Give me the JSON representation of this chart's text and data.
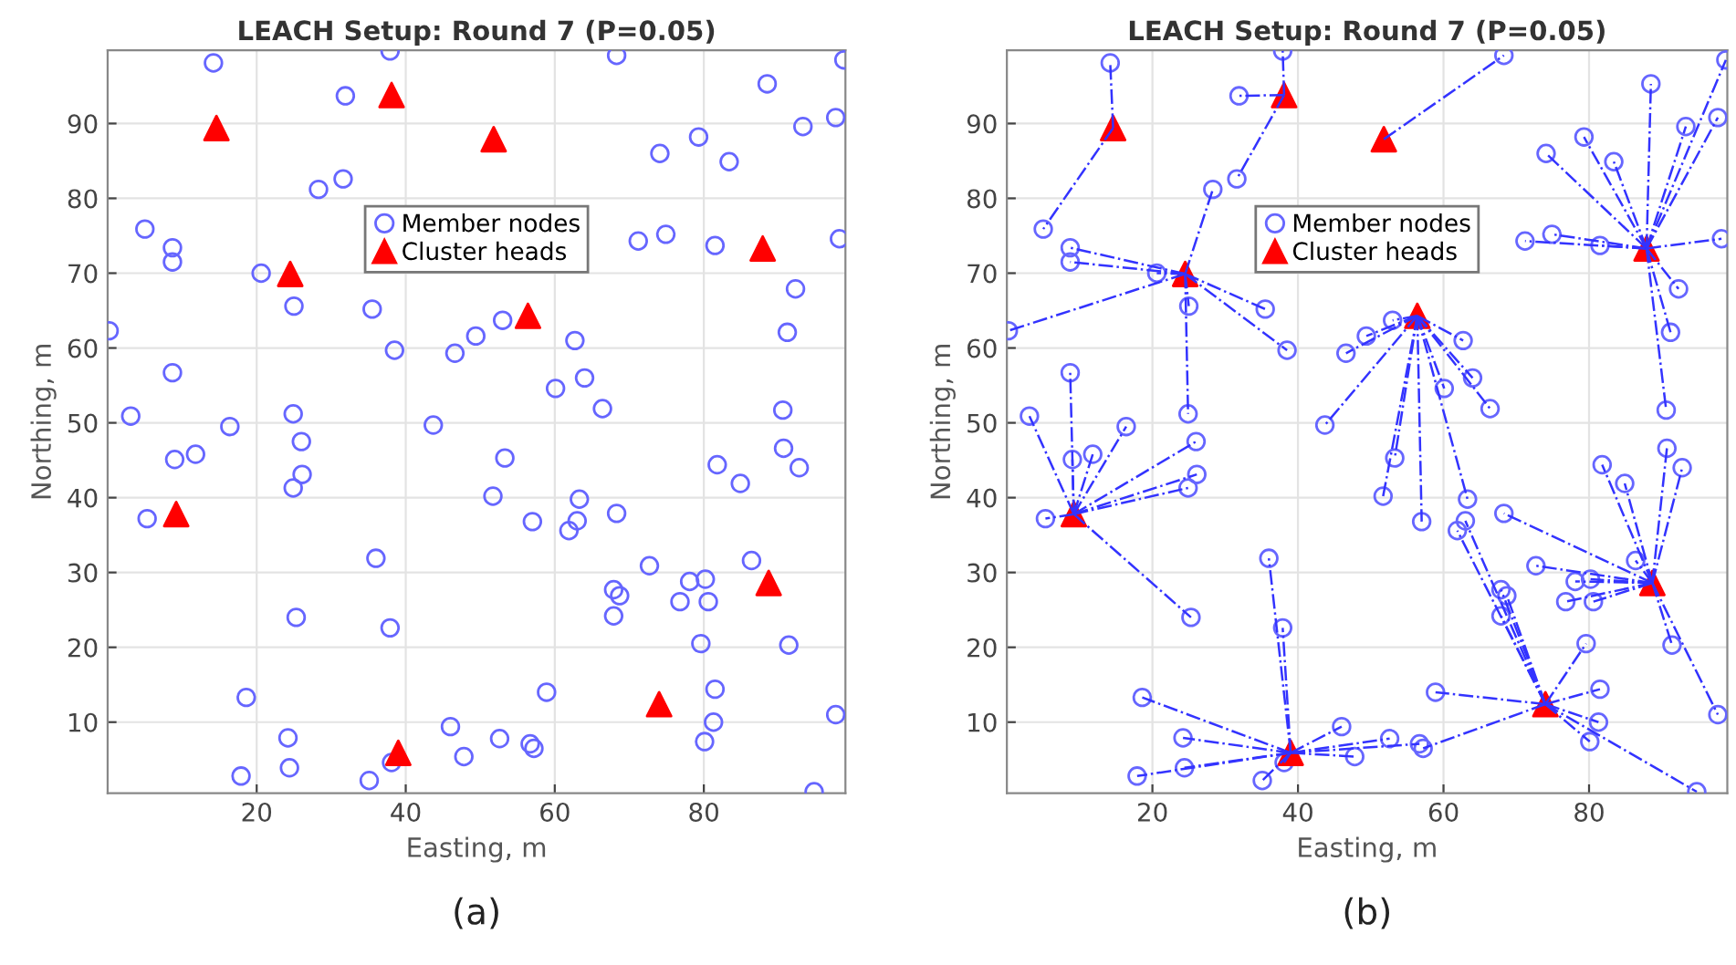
{
  "chart_data": [
    {
      "type": "scatter",
      "title": "LEACH Setup: Round 7 (P=0.05)",
      "xlabel": "Easting, m",
      "ylabel": "Northing, m",
      "xlim": [
        0,
        99
      ],
      "ylim": [
        0.5,
        99.8
      ],
      "xticks": [
        20,
        40,
        60,
        80
      ],
      "yticks": [
        10,
        20,
        30,
        40,
        50,
        60,
        70,
        80,
        90
      ],
      "grid": true,
      "legend": "top",
      "annotations": [
        "(a)"
      ],
      "series": [
        {
          "name": "Member nodes",
          "type": "scatter",
          "marker": "circle",
          "color": "#6666ff",
          "x": [
            0.2,
            14.2,
            5.0,
            8.7,
            8.7,
            8.7,
            3.1,
            16.4,
            9.0,
            11.8,
            20.6,
            25.0,
            31.9,
            31.6,
            28.3,
            37.9,
            35.5,
            38.5,
            24.9,
            26.0,
            26.1,
            24.9,
            5.3,
            46.6,
            49.4,
            53.0,
            43.7,
            60.1,
            62.7,
            64.0,
            66.4,
            68.3,
            74.1,
            71.2,
            74.9,
            79.3,
            83.4,
            81.5,
            88.5,
            93.3,
            97.7,
            98.8,
            98.2,
            92.3,
            91.2,
            90.6,
            90.7,
            92.8,
            81.8,
            84.9,
            86.4,
            91.4,
            97.7,
            94.8,
            53.3,
            51.7,
            57.0,
            63.3,
            63.0,
            61.9,
            68.3,
            72.7,
            67.9,
            68.7,
            67.9,
            76.8,
            78.1,
            80.2,
            80.6,
            79.6,
            81.5,
            81.3,
            80.1,
            58.9,
            46.0,
            47.8,
            52.6,
            56.7,
            57.2,
            38.1,
            35.1,
            36.0,
            37.9,
            25.3,
            18.6,
            24.2,
            24.4,
            17.9
          ],
          "values": [
            62.3,
            98.1,
            75.9,
            73.4,
            71.5,
            56.7,
            50.9,
            49.5,
            45.1,
            45.8,
            70.0,
            65.6,
            93.7,
            82.6,
            81.2,
            99.7,
            65.2,
            59.7,
            51.2,
            47.5,
            43.1,
            41.3,
            37.2,
            59.3,
            61.6,
            63.7,
            49.7,
            54.6,
            61.0,
            56.0,
            51.9,
            99.1,
            86.0,
            74.3,
            75.2,
            88.2,
            84.9,
            73.7,
            95.3,
            89.6,
            90.8,
            98.5,
            74.6,
            67.9,
            62.1,
            51.7,
            46.6,
            44.0,
            44.4,
            41.9,
            31.6,
            20.3,
            11.0,
            0.7,
            45.3,
            40.2,
            36.8,
            39.8,
            36.9,
            35.6,
            37.9,
            30.9,
            27.7,
            26.9,
            24.2,
            26.1,
            28.8,
            29.1,
            26.1,
            20.5,
            14.4,
            10.0,
            7.4,
            14.0,
            9.4,
            5.4,
            7.8,
            7.1,
            6.5,
            4.6,
            2.2,
            31.9,
            22.6,
            24.0,
            13.3,
            7.9,
            3.9,
            2.8
          ]
        },
        {
          "name": "Cluster heads",
          "type": "scatter",
          "marker": "triangle",
          "color": "#ff0000",
          "x": [
            14.6,
            38.1,
            51.8,
            24.5,
            56.4,
            87.9,
            9.2,
            39.0,
            74.0,
            88.7
          ],
          "values": [
            89.4,
            93.8,
            87.9,
            69.9,
            64.3,
            73.3,
            37.8,
            5.9,
            12.4,
            28.6
          ]
        }
      ]
    },
    {
      "type": "scatter",
      "title": "LEACH Setup: Round 7 (P=0.05)",
      "xlabel": "Easting, m",
      "ylabel": "Northing, m",
      "xlim": [
        0,
        99
      ],
      "ylim": [
        0.5,
        99.8
      ],
      "xticks": [
        20,
        40,
        60,
        80
      ],
      "yticks": [
        10,
        20,
        30,
        40,
        50,
        60,
        70,
        80,
        90
      ],
      "grid": true,
      "legend": "top",
      "annotations": [
        "(b)"
      ],
      "series": [
        {
          "type": "line",
          "line_style": "dashdot",
          "color": "#3333ff",
          "x": [
            14.6,
            14.2
          ],
          "values": [
            89.4,
            98.1
          ]
        },
        {
          "type": "line",
          "line_style": "dashdot",
          "color": "#3333ff",
          "x": [
            14.6,
            5.0
          ],
          "values": [
            89.4,
            75.9
          ]
        },
        {
          "type": "line",
          "line_style": "dashdot",
          "color": "#3333ff",
          "x": [
            38.1,
            31.9
          ],
          "values": [
            93.8,
            93.7
          ]
        },
        {
          "type": "line",
          "line_style": "dashdot",
          "color": "#3333ff",
          "x": [
            38.1,
            31.6
          ],
          "values": [
            93.8,
            82.6
          ]
        },
        {
          "type": "line",
          "line_style": "dashdot",
          "color": "#3333ff",
          "x": [
            38.1,
            37.9
          ],
          "values": [
            93.8,
            99.7
          ]
        },
        {
          "type": "line",
          "line_style": "dashdot",
          "color": "#3333ff",
          "x": [
            51.8,
            68.3
          ],
          "values": [
            87.9,
            99.1
          ]
        },
        {
          "type": "line",
          "line_style": "dashdot",
          "color": "#3333ff",
          "x": [
            24.5,
            0.2
          ],
          "values": [
            69.9,
            62.3
          ]
        },
        {
          "type": "line",
          "line_style": "dashdot",
          "color": "#3333ff",
          "x": [
            24.5,
            8.7
          ],
          "values": [
            69.9,
            73.4
          ]
        },
        {
          "type": "line",
          "line_style": "dashdot",
          "color": "#3333ff",
          "x": [
            24.5,
            8.7
          ],
          "values": [
            69.9,
            71.5
          ]
        },
        {
          "type": "line",
          "line_style": "dashdot",
          "color": "#3333ff",
          "x": [
            24.5,
            20.6
          ],
          "values": [
            69.9,
            70.0
          ]
        },
        {
          "type": "line",
          "line_style": "dashdot",
          "color": "#3333ff",
          "x": [
            24.5,
            25.0
          ],
          "values": [
            69.9,
            65.6
          ]
        },
        {
          "type": "line",
          "line_style": "dashdot",
          "color": "#3333ff",
          "x": [
            24.5,
            28.3
          ],
          "values": [
            69.9,
            81.2
          ]
        },
        {
          "type": "line",
          "line_style": "dashdot",
          "color": "#3333ff",
          "x": [
            24.5,
            35.5
          ],
          "values": [
            69.9,
            65.2
          ]
        },
        {
          "type": "line",
          "line_style": "dashdot",
          "color": "#3333ff",
          "x": [
            24.5,
            38.5
          ],
          "values": [
            69.9,
            59.7
          ]
        },
        {
          "type": "line",
          "line_style": "dashdot",
          "color": "#3333ff",
          "x": [
            24.5,
            24.9
          ],
          "values": [
            69.9,
            51.2
          ]
        },
        {
          "type": "line",
          "line_style": "dashdot",
          "color": "#3333ff",
          "x": [
            56.4,
            46.6
          ],
          "values": [
            64.3,
            59.3
          ]
        },
        {
          "type": "line",
          "line_style": "dashdot",
          "color": "#3333ff",
          "x": [
            56.4,
            49.4
          ],
          "values": [
            64.3,
            61.6
          ]
        },
        {
          "type": "line",
          "line_style": "dashdot",
          "color": "#3333ff",
          "x": [
            56.4,
            53.0
          ],
          "values": [
            64.3,
            63.7
          ]
        },
        {
          "type": "line",
          "line_style": "dashdot",
          "color": "#3333ff",
          "x": [
            56.4,
            43.7
          ],
          "values": [
            64.3,
            49.7
          ]
        },
        {
          "type": "line",
          "line_style": "dashdot",
          "color": "#3333ff",
          "x": [
            56.4,
            60.1
          ],
          "values": [
            64.3,
            54.6
          ]
        },
        {
          "type": "line",
          "line_style": "dashdot",
          "color": "#3333ff",
          "x": [
            56.4,
            62.7
          ],
          "values": [
            64.3,
            61.0
          ]
        },
        {
          "type": "line",
          "line_style": "dashdot",
          "color": "#3333ff",
          "x": [
            56.4,
            64.0
          ],
          "values": [
            64.3,
            56.0
          ]
        },
        {
          "type": "line",
          "line_style": "dashdot",
          "color": "#3333ff",
          "x": [
            56.4,
            66.4
          ],
          "values": [
            64.3,
            51.9
          ]
        },
        {
          "type": "line",
          "line_style": "dashdot",
          "color": "#3333ff",
          "x": [
            56.4,
            53.3
          ],
          "values": [
            64.3,
            45.3
          ]
        },
        {
          "type": "line",
          "line_style": "dashdot",
          "color": "#3333ff",
          "x": [
            56.4,
            51.7
          ],
          "values": [
            64.3,
            40.2
          ]
        },
        {
          "type": "line",
          "line_style": "dashdot",
          "color": "#3333ff",
          "x": [
            56.4,
            57.0
          ],
          "values": [
            64.3,
            36.8
          ]
        },
        {
          "type": "line",
          "line_style": "dashdot",
          "color": "#3333ff",
          "x": [
            56.4,
            63.3
          ],
          "values": [
            64.3,
            39.8
          ]
        },
        {
          "type": "line",
          "line_style": "dashdot",
          "color": "#3333ff",
          "x": [
            87.9,
            74.1
          ],
          "values": [
            73.3,
            86.0
          ]
        },
        {
          "type": "line",
          "line_style": "dashdot",
          "color": "#3333ff",
          "x": [
            87.9,
            71.2
          ],
          "values": [
            73.3,
            74.3
          ]
        },
        {
          "type": "line",
          "line_style": "dashdot",
          "color": "#3333ff",
          "x": [
            87.9,
            74.9
          ],
          "values": [
            73.3,
            75.2
          ]
        },
        {
          "type": "line",
          "line_style": "dashdot",
          "color": "#3333ff",
          "x": [
            87.9,
            79.3
          ],
          "values": [
            73.3,
            88.2
          ]
        },
        {
          "type": "line",
          "line_style": "dashdot",
          "color": "#3333ff",
          "x": [
            87.9,
            83.4
          ],
          "values": [
            73.3,
            84.9
          ]
        },
        {
          "type": "line",
          "line_style": "dashdot",
          "color": "#3333ff",
          "x": [
            87.9,
            81.5
          ],
          "values": [
            73.3,
            73.7
          ]
        },
        {
          "type": "line",
          "line_style": "dashdot",
          "color": "#3333ff",
          "x": [
            87.9,
            88.5
          ],
          "values": [
            73.3,
            95.3
          ]
        },
        {
          "type": "line",
          "line_style": "dashdot",
          "color": "#3333ff",
          "x": [
            87.9,
            93.3
          ],
          "values": [
            73.3,
            89.6
          ]
        },
        {
          "type": "line",
          "line_style": "dashdot",
          "color": "#3333ff",
          "x": [
            87.9,
            97.7
          ],
          "values": [
            73.3,
            90.8
          ]
        },
        {
          "type": "line",
          "line_style": "dashdot",
          "color": "#3333ff",
          "x": [
            87.9,
            98.8
          ],
          "values": [
            73.3,
            98.5
          ]
        },
        {
          "type": "line",
          "line_style": "dashdot",
          "color": "#3333ff",
          "x": [
            87.9,
            98.2
          ],
          "values": [
            73.3,
            74.6
          ]
        },
        {
          "type": "line",
          "line_style": "dashdot",
          "color": "#3333ff",
          "x": [
            87.9,
            92.3
          ],
          "values": [
            73.3,
            67.9
          ]
        },
        {
          "type": "line",
          "line_style": "dashdot",
          "color": "#3333ff",
          "x": [
            87.9,
            91.2
          ],
          "values": [
            73.3,
            62.1
          ]
        },
        {
          "type": "line",
          "line_style": "dashdot",
          "color": "#3333ff",
          "x": [
            87.9,
            90.6
          ],
          "values": [
            73.3,
            51.7
          ]
        },
        {
          "type": "line",
          "line_style": "dashdot",
          "color": "#3333ff",
          "x": [
            9.2,
            8.7
          ],
          "values": [
            37.8,
            56.7
          ]
        },
        {
          "type": "line",
          "line_style": "dashdot",
          "color": "#3333ff",
          "x": [
            9.2,
            3.1
          ],
          "values": [
            37.8,
            50.9
          ]
        },
        {
          "type": "line",
          "line_style": "dashdot",
          "color": "#3333ff",
          "x": [
            9.2,
            16.4
          ],
          "values": [
            37.8,
            49.5
          ]
        },
        {
          "type": "line",
          "line_style": "dashdot",
          "color": "#3333ff",
          "x": [
            9.2,
            9.0
          ],
          "values": [
            37.8,
            45.1
          ]
        },
        {
          "type": "line",
          "line_style": "dashdot",
          "color": "#3333ff",
          "x": [
            9.2,
            11.8
          ],
          "values": [
            37.8,
            45.8
          ]
        },
        {
          "type": "line",
          "line_style": "dashdot",
          "color": "#3333ff",
          "x": [
            9.2,
            26.0
          ],
          "values": [
            37.8,
            47.5
          ]
        },
        {
          "type": "line",
          "line_style": "dashdot",
          "color": "#3333ff",
          "x": [
            9.2,
            26.1
          ],
          "values": [
            37.8,
            43.1
          ]
        },
        {
          "type": "line",
          "line_style": "dashdot",
          "color": "#3333ff",
          "x": [
            9.2,
            24.9
          ],
          "values": [
            37.8,
            41.3
          ]
        },
        {
          "type": "line",
          "line_style": "dashdot",
          "color": "#3333ff",
          "x": [
            9.2,
            5.3
          ],
          "values": [
            37.8,
            37.2
          ]
        },
        {
          "type": "line",
          "line_style": "dashdot",
          "color": "#3333ff",
          "x": [
            9.2,
            25.3
          ],
          "values": [
            37.8,
            24.0
          ]
        },
        {
          "type": "line",
          "line_style": "dashdot",
          "color": "#3333ff",
          "x": [
            39.0,
            46.0
          ],
          "values": [
            5.9,
            9.4
          ]
        },
        {
          "type": "line",
          "line_style": "dashdot",
          "color": "#3333ff",
          "x": [
            39.0,
            47.8
          ],
          "values": [
            5.9,
            5.4
          ]
        },
        {
          "type": "line",
          "line_style": "dashdot",
          "color": "#3333ff",
          "x": [
            39.0,
            52.6
          ],
          "values": [
            5.9,
            7.8
          ]
        },
        {
          "type": "line",
          "line_style": "dashdot",
          "color": "#3333ff",
          "x": [
            39.0,
            56.7
          ],
          "values": [
            5.9,
            7.1
          ]
        },
        {
          "type": "line",
          "line_style": "dashdot",
          "color": "#3333ff",
          "x": [
            39.0,
            38.1
          ],
          "values": [
            5.9,
            4.6
          ]
        },
        {
          "type": "line",
          "line_style": "dashdot",
          "color": "#3333ff",
          "x": [
            39.0,
            35.1
          ],
          "values": [
            5.9,
            2.2
          ]
        },
        {
          "type": "line",
          "line_style": "dashdot",
          "color": "#3333ff",
          "x": [
            39.0,
            36.0
          ],
          "values": [
            5.9,
            31.9
          ]
        },
        {
          "type": "line",
          "line_style": "dashdot",
          "color": "#3333ff",
          "x": [
            39.0,
            37.9
          ],
          "values": [
            5.9,
            22.6
          ]
        },
        {
          "type": "line",
          "line_style": "dashdot",
          "color": "#3333ff",
          "x": [
            39.0,
            18.6
          ],
          "values": [
            5.9,
            13.3
          ]
        },
        {
          "type": "line",
          "line_style": "dashdot",
          "color": "#3333ff",
          "x": [
            39.0,
            24.2
          ],
          "values": [
            5.9,
            7.9
          ]
        },
        {
          "type": "line",
          "line_style": "dashdot",
          "color": "#3333ff",
          "x": [
            39.0,
            24.4
          ],
          "values": [
            5.9,
            3.9
          ]
        },
        {
          "type": "line",
          "line_style": "dashdot",
          "color": "#3333ff",
          "x": [
            39.0,
            17.9
          ],
          "values": [
            5.9,
            2.8
          ]
        },
        {
          "type": "line",
          "line_style": "dashdot",
          "color": "#3333ff",
          "x": [
            74.0,
            94.8
          ],
          "values": [
            12.4,
            0.7
          ]
        },
        {
          "type": "line",
          "line_style": "dashdot",
          "color": "#3333ff",
          "x": [
            74.0,
            63.0
          ],
          "values": [
            12.4,
            36.9
          ]
        },
        {
          "type": "line",
          "line_style": "dashdot",
          "color": "#3333ff",
          "x": [
            74.0,
            61.9
          ],
          "values": [
            12.4,
            35.6
          ]
        },
        {
          "type": "line",
          "line_style": "dashdot",
          "color": "#3333ff",
          "x": [
            74.0,
            67.9
          ],
          "values": [
            12.4,
            27.7
          ]
        },
        {
          "type": "line",
          "line_style": "dashdot",
          "color": "#3333ff",
          "x": [
            74.0,
            68.7
          ],
          "values": [
            12.4,
            26.9
          ]
        },
        {
          "type": "line",
          "line_style": "dashdot",
          "color": "#3333ff",
          "x": [
            74.0,
            67.9
          ],
          "values": [
            12.4,
            24.2
          ]
        },
        {
          "type": "line",
          "line_style": "dashdot",
          "color": "#3333ff",
          "x": [
            74.0,
            79.6
          ],
          "values": [
            12.4,
            20.5
          ]
        },
        {
          "type": "line",
          "line_style": "dashdot",
          "color": "#3333ff",
          "x": [
            74.0,
            81.5
          ],
          "values": [
            12.4,
            14.4
          ]
        },
        {
          "type": "line",
          "line_style": "dashdot",
          "color": "#3333ff",
          "x": [
            74.0,
            81.3
          ],
          "values": [
            12.4,
            10.0
          ]
        },
        {
          "type": "line",
          "line_style": "dashdot",
          "color": "#3333ff",
          "x": [
            74.0,
            80.1
          ],
          "values": [
            12.4,
            7.4
          ]
        },
        {
          "type": "line",
          "line_style": "dashdot",
          "color": "#3333ff",
          "x": [
            74.0,
            58.9
          ],
          "values": [
            12.4,
            14.0
          ]
        },
        {
          "type": "line",
          "line_style": "dashdot",
          "color": "#3333ff",
          "x": [
            74.0,
            57.2
          ],
          "values": [
            12.4,
            6.5
          ]
        },
        {
          "type": "line",
          "line_style": "dashdot",
          "color": "#3333ff",
          "x": [
            88.7,
            90.7
          ],
          "values": [
            28.6,
            46.6
          ]
        },
        {
          "type": "line",
          "line_style": "dashdot",
          "color": "#3333ff",
          "x": [
            88.7,
            92.8
          ],
          "values": [
            28.6,
            44.0
          ]
        },
        {
          "type": "line",
          "line_style": "dashdot",
          "color": "#3333ff",
          "x": [
            88.7,
            81.8
          ],
          "values": [
            28.6,
            44.4
          ]
        },
        {
          "type": "line",
          "line_style": "dashdot",
          "color": "#3333ff",
          "x": [
            88.7,
            84.9
          ],
          "values": [
            28.6,
            41.9
          ]
        },
        {
          "type": "line",
          "line_style": "dashdot",
          "color": "#3333ff",
          "x": [
            88.7,
            86.4
          ],
          "values": [
            28.6,
            31.6
          ]
        },
        {
          "type": "line",
          "line_style": "dashdot",
          "color": "#3333ff",
          "x": [
            88.7,
            91.4
          ],
          "values": [
            28.6,
            20.3
          ]
        },
        {
          "type": "line",
          "line_style": "dashdot",
          "color": "#3333ff",
          "x": [
            88.7,
            97.7
          ],
          "values": [
            28.6,
            11.0
          ]
        },
        {
          "type": "line",
          "line_style": "dashdot",
          "color": "#3333ff",
          "x": [
            88.7,
            68.3
          ],
          "values": [
            28.6,
            37.9
          ]
        },
        {
          "type": "line",
          "line_style": "dashdot",
          "color": "#3333ff",
          "x": [
            88.7,
            72.7
          ],
          "values": [
            28.6,
            30.9
          ]
        },
        {
          "type": "line",
          "line_style": "dashdot",
          "color": "#3333ff",
          "x": [
            88.7,
            76.8
          ],
          "values": [
            28.6,
            26.1
          ]
        },
        {
          "type": "line",
          "line_style": "dashdot",
          "color": "#3333ff",
          "x": [
            88.7,
            78.1
          ],
          "values": [
            28.6,
            28.8
          ]
        },
        {
          "type": "line",
          "line_style": "dashdot",
          "color": "#3333ff",
          "x": [
            88.7,
            80.2
          ],
          "values": [
            28.6,
            29.1
          ]
        },
        {
          "type": "line",
          "line_style": "dashdot",
          "color": "#3333ff",
          "x": [
            88.7,
            80.6
          ],
          "values": [
            28.6,
            26.1
          ]
        },
        {
          "name": "Member nodes",
          "type": "scatter",
          "marker": "circle",
          "color": "#6666ff",
          "x": [
            0.2,
            14.2,
            5.0,
            8.7,
            8.7,
            8.7,
            3.1,
            16.4,
            9.0,
            11.8,
            20.6,
            25.0,
            31.9,
            31.6,
            28.3,
            37.9,
            35.5,
            38.5,
            24.9,
            26.0,
            26.1,
            24.9,
            5.3,
            46.6,
            49.4,
            53.0,
            43.7,
            60.1,
            62.7,
            64.0,
            66.4,
            68.3,
            74.1,
            71.2,
            74.9,
            79.3,
            83.4,
            81.5,
            88.5,
            93.3,
            97.7,
            98.8,
            98.2,
            92.3,
            91.2,
            90.6,
            90.7,
            92.8,
            81.8,
            84.9,
            86.4,
            91.4,
            97.7,
            94.8,
            53.3,
            51.7,
            57.0,
            63.3,
            63.0,
            61.9,
            68.3,
            72.7,
            67.9,
            68.7,
            67.9,
            76.8,
            78.1,
            80.2,
            80.6,
            79.6,
            81.5,
            81.3,
            80.1,
            58.9,
            46.0,
            47.8,
            52.6,
            56.7,
            57.2,
            38.1,
            35.1,
            36.0,
            37.9,
            25.3,
            18.6,
            24.2,
            24.4,
            17.9
          ],
          "values": [
            62.3,
            98.1,
            75.9,
            73.4,
            71.5,
            56.7,
            50.9,
            49.5,
            45.1,
            45.8,
            70.0,
            65.6,
            93.7,
            82.6,
            81.2,
            99.7,
            65.2,
            59.7,
            51.2,
            47.5,
            43.1,
            41.3,
            37.2,
            59.3,
            61.6,
            63.7,
            49.7,
            54.6,
            61.0,
            56.0,
            51.9,
            99.1,
            86.0,
            74.3,
            75.2,
            88.2,
            84.9,
            73.7,
            95.3,
            89.6,
            90.8,
            98.5,
            74.6,
            67.9,
            62.1,
            51.7,
            46.6,
            44.0,
            44.4,
            41.9,
            31.6,
            20.3,
            11.0,
            0.7,
            45.3,
            40.2,
            36.8,
            39.8,
            36.9,
            35.6,
            37.9,
            30.9,
            27.7,
            26.9,
            24.2,
            26.1,
            28.8,
            29.1,
            26.1,
            20.5,
            14.4,
            10.0,
            7.4,
            14.0,
            9.4,
            5.4,
            7.8,
            7.1,
            6.5,
            4.6,
            2.2,
            31.9,
            22.6,
            24.0,
            13.3,
            7.9,
            3.9,
            2.8
          ]
        },
        {
          "name": "Cluster heads",
          "type": "scatter",
          "marker": "triangle",
          "color": "#ff0000",
          "x": [
            14.6,
            38.1,
            51.8,
            24.5,
            56.4,
            87.9,
            9.2,
            39.0,
            74.0,
            88.7
          ],
          "values": [
            89.4,
            93.8,
            87.9,
            69.9,
            64.3,
            73.3,
            37.8,
            5.9,
            12.4,
            28.6
          ]
        }
      ]
    }
  ]
}
